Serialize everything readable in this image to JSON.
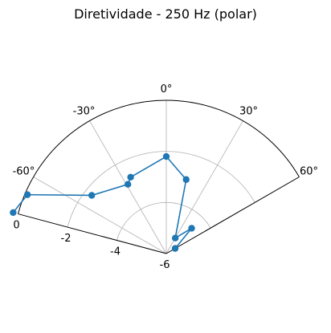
{
  "chart_data": {
    "type": "line",
    "title": "Diretividade - 250 Hz (polar)",
    "projection": "polar",
    "theta_direction": "clockwise",
    "theta_zero": "top",
    "theta_range_deg": [
      -75,
      60
    ],
    "r_range": [
      -6,
      0
    ],
    "grid": true,
    "theta_ticks": [
      "-60°",
      "-30°",
      "0°",
      "30°",
      "60°"
    ],
    "theta_tick_values_deg": [
      -60,
      -30,
      0,
      30,
      60
    ],
    "r_ticks": [
      "-6",
      "-4",
      "-2",
      "0"
    ],
    "r_tick_values": [
      -6,
      -4,
      -2,
      0
    ],
    "series": [
      {
        "color": "#1f77b4",
        "marker": "circle",
        "theta_deg": [
          -75,
          -67,
          -52,
          -29,
          -25,
          0,
          15,
          30,
          45,
          60
        ],
        "r": [
          0.2,
          -0.1,
          -2.3,
          -2.9,
          -2.7,
          -2.2,
          -3.0,
          -5.3,
          -4.6,
          -5.6
        ]
      }
    ]
  }
}
